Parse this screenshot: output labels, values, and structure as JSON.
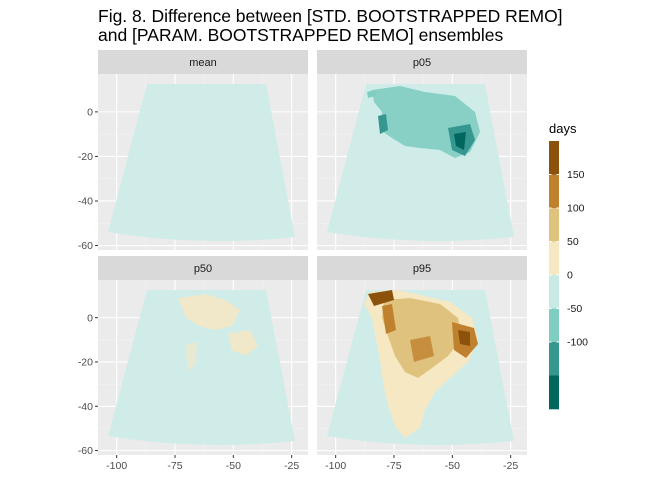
{
  "figure": {
    "title_line1": "Fig. 8. Difference between [STD. BOOTSTRAPPED REMO]",
    "title_line2": "and [PARAM. BOOTSTRAPPED REMO] ensembles"
  },
  "panels": [
    {
      "label": "mean"
    },
    {
      "label": "p05"
    },
    {
      "label": "p50"
    },
    {
      "label": "p95"
    }
  ],
  "axes": {
    "x_ticks": [
      "-100",
      "-75",
      "-50",
      "-25"
    ],
    "y_ticks": [
      "0",
      "-20",
      "-40",
      "-60"
    ],
    "x_values": [
      -100,
      -75,
      -50,
      -25
    ],
    "y_values": [
      0,
      -20,
      -40,
      -60
    ],
    "xlim": [
      -108,
      -18
    ],
    "ylim": [
      -62,
      17
    ]
  },
  "legend": {
    "title": "days",
    "labels": [
      "150",
      "100",
      "50",
      "0",
      "-50",
      "-100"
    ],
    "colors": [
      "#8c510a",
      "#bf812d",
      "#dfc27d",
      "#f6e8c3",
      "#c7eae5",
      "#80cdc1",
      "#35978f",
      "#01665e"
    ]
  },
  "chart_data": {
    "type": "heatmap",
    "title": "Fig. 8. Difference between [STD. BOOTSTRAPPED REMO] and [PARAM. BOOTSTRAPPED REMO] ensembles",
    "facets": [
      "mean",
      "p05",
      "p50",
      "p95"
    ],
    "xlim": [
      -108,
      -18
    ],
    "ylim": [
      -62,
      17
    ],
    "colorbar_title": "days",
    "colorbar_breaks": [
      150,
      100,
      50,
      0,
      -50,
      -100
    ],
    "grid": true,
    "legend_position": "right"
  }
}
